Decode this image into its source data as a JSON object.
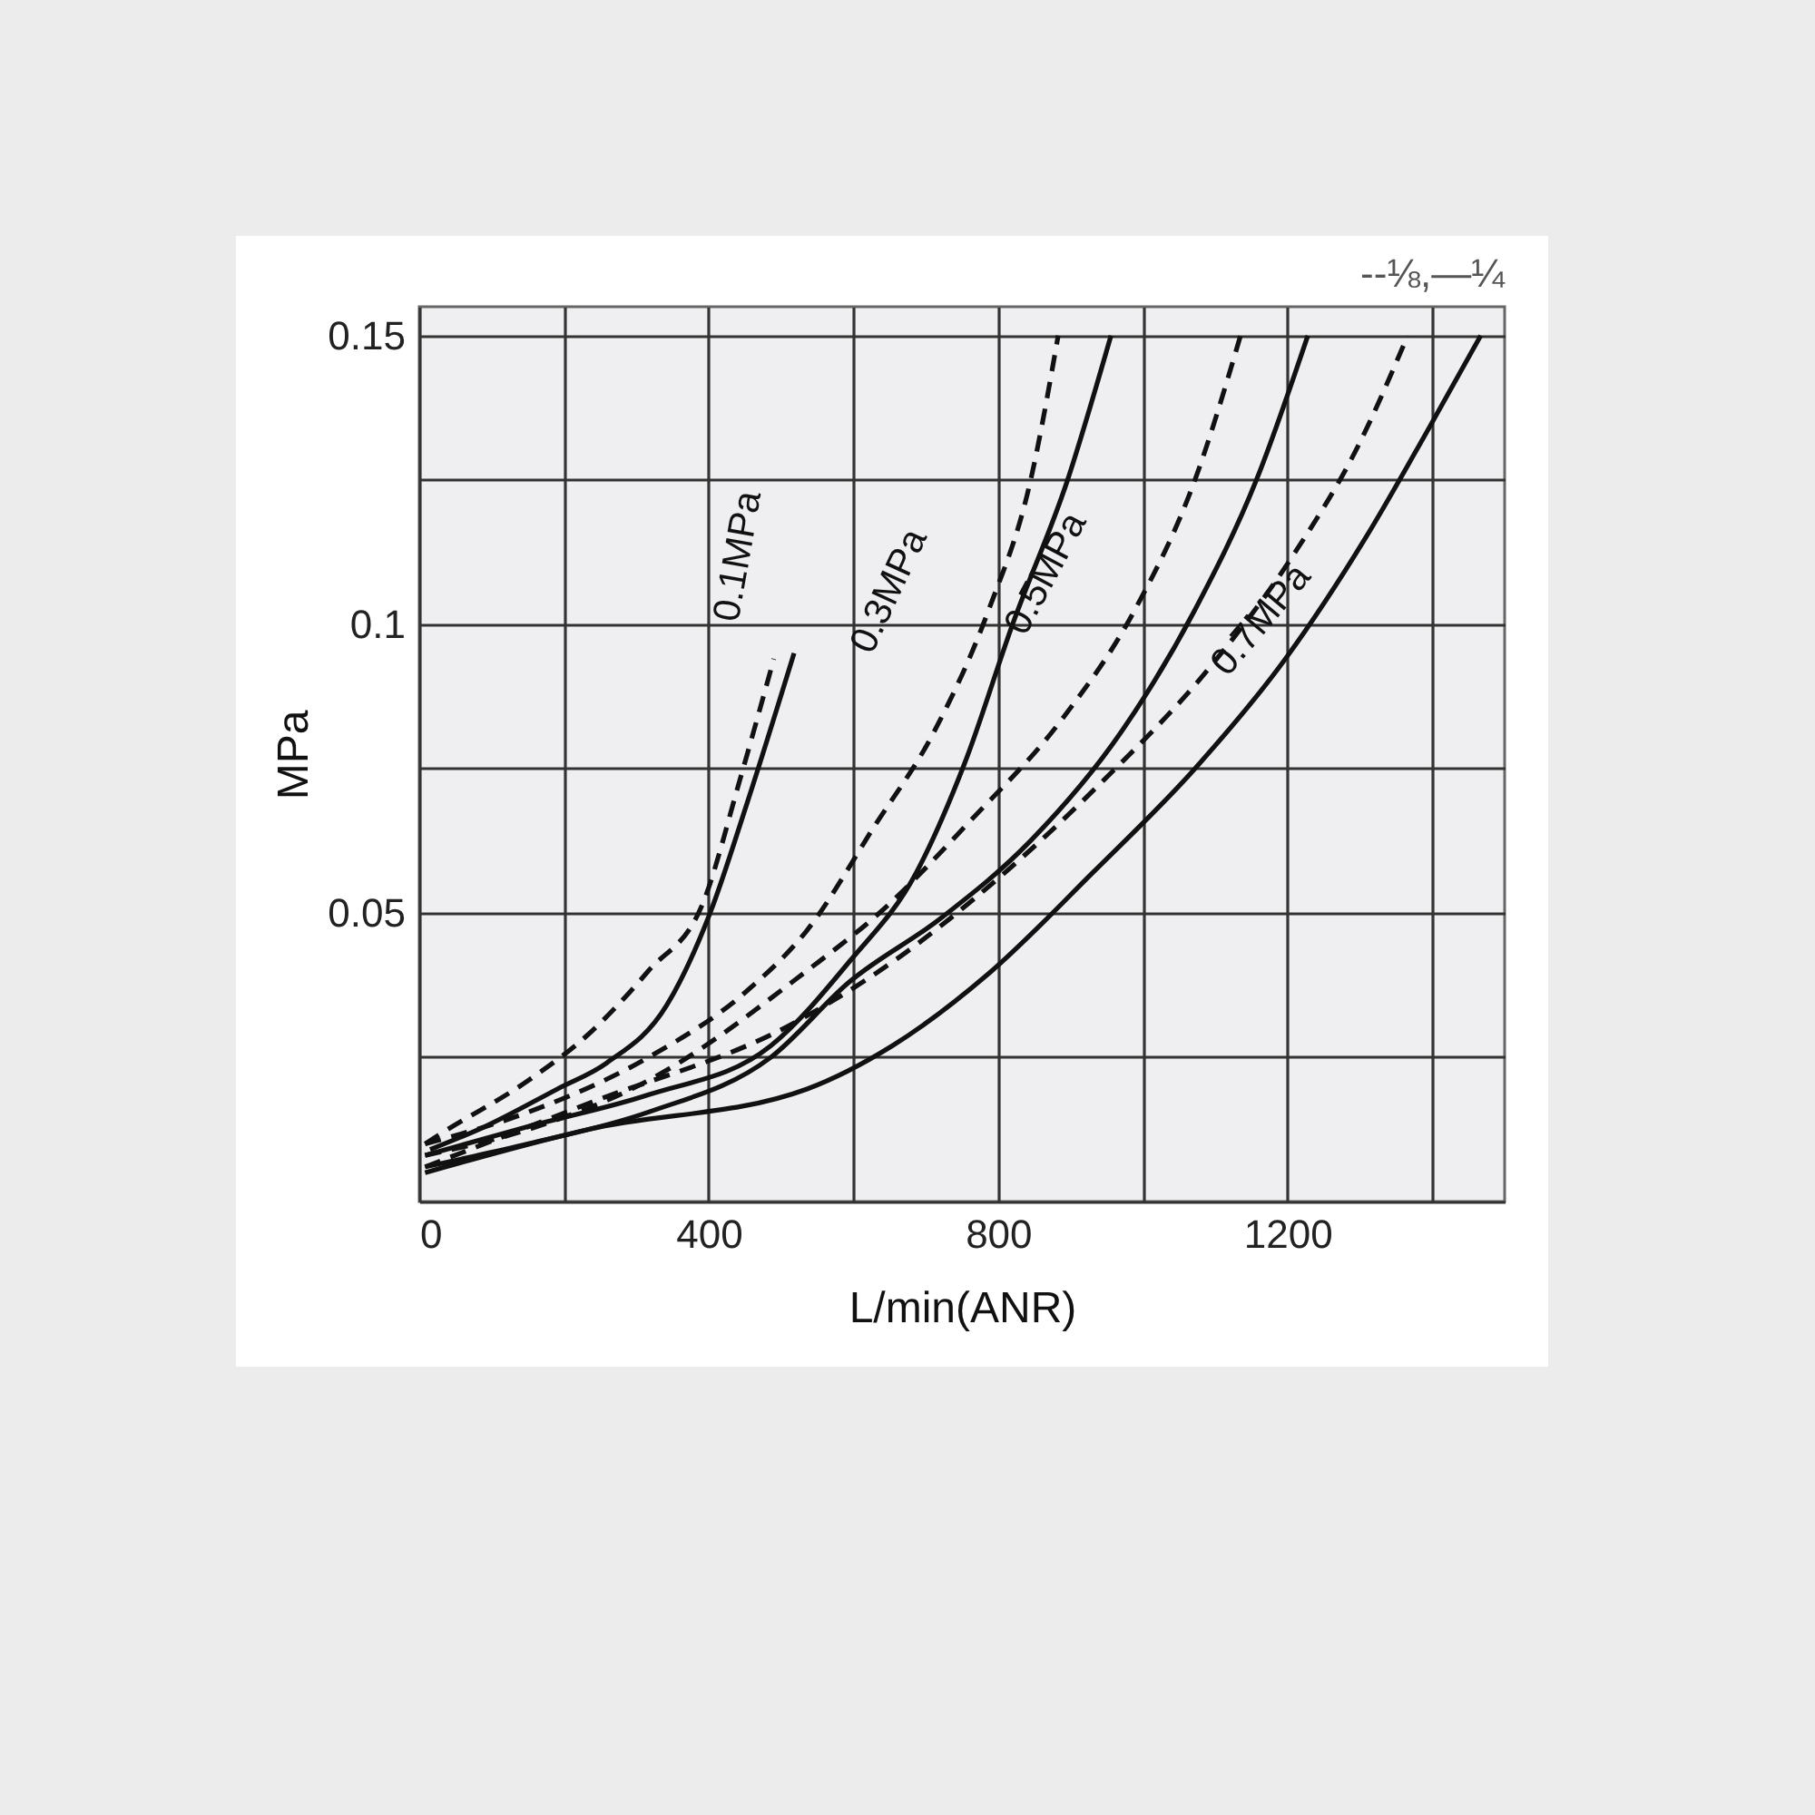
{
  "chart_data": {
    "type": "line",
    "xlabel": "L/min(ANR)",
    "ylabel": "MPa",
    "xlim": [
      0,
      1500
    ],
    "ylim": [
      0,
      0.155
    ],
    "xticks": [
      0,
      {
        "value": 200,
        "label": null
      },
      400,
      {
        "value": 600,
        "label": null
      },
      800,
      {
        "value": 1000,
        "label": null
      },
      1200,
      {
        "value": 1400,
        "label": null
      }
    ],
    "yticks": [
      {
        "value": 0,
        "label": null
      },
      {
        "value": 0.025,
        "label": null
      },
      0.05,
      {
        "value": 0.075,
        "label": null
      },
      0.1,
      {
        "value": 0.125,
        "label": null
      },
      0.15
    ],
    "grid": true,
    "annotations": [
      "--⅛,—¼",
      "0.1MPa",
      "0.3MPa",
      "0.5MPa",
      "0.7MPa"
    ],
    "series": [
      {
        "color": "#111111",
        "line_style": "dashed",
        "x": [
          8,
          33,
          151,
          234,
          317,
          393,
          443,
          490
        ],
        "values": [
          0.01,
          0.012,
          0.021,
          0.029,
          0.04,
          0.052,
          0.073,
          0.094
        ]
      },
      {
        "color": "#111111",
        "line_style": "solid",
        "x": [
          15,
          91,
          191,
          259,
          342,
          402,
          453,
          518
        ],
        "values": [
          0.009,
          0.013,
          0.0195,
          0.024,
          0.034,
          0.05,
          0.069,
          0.095
        ]
      },
      {
        "color": "#111111",
        "line_style": "dashed",
        "x": [
          8,
          151,
          317,
          453,
          536,
          629,
          712,
          787,
          845,
          883
        ],
        "values": [
          0.01,
          0.0155,
          0.025,
          0.0365,
          0.047,
          0.065,
          0.0815,
          0.1025,
          0.125,
          0.15
        ]
      },
      {
        "color": "#111111",
        "line_style": "solid",
        "x": [
          8,
          151,
          317,
          486,
          594,
          687,
          754,
          820,
          896,
          956
        ],
        "values": [
          0.008,
          0.013,
          0.0185,
          0.027,
          0.0415,
          0.057,
          0.076,
          0.1,
          0.125,
          0.15
        ]
      },
      {
        "color": "#111111",
        "line_style": "dashed",
        "x": [
          8,
          151,
          317,
          536,
          636,
          762,
          888,
          989,
          1072,
          1135
        ],
        "values": [
          0.008,
          0.0125,
          0.021,
          0.04,
          0.05,
          0.066,
          0.0835,
          0.1025,
          0.125,
          0.15
        ]
      },
      {
        "color": "#111111",
        "line_style": "solid",
        "x": [
          8,
          151,
          317,
          486,
          594,
          720,
          845,
          971,
          1072,
          1157,
          1228
        ],
        "values": [
          0.006,
          0.01,
          0.0155,
          0.025,
          0.038,
          0.049,
          0.0625,
          0.0815,
          0.1025,
          0.125,
          0.15
        ]
      },
      {
        "color": "#111111",
        "line_style": "dashed",
        "x": [
          8,
          234,
          519,
          654,
          805,
          946,
          1089,
          1208,
          1298,
          1366
        ],
        "values": [
          0.006,
          0.017,
          0.031,
          0.0415,
          0.0565,
          0.073,
          0.092,
          0.112,
          0.131,
          0.15
        ]
      },
      {
        "color": "#111111",
        "line_style": "solid",
        "x": [
          8,
          234,
          536,
          654,
          787,
          931,
          1072,
          1197,
          1308,
          1391,
          1467
        ],
        "values": [
          0.005,
          0.0125,
          0.0195,
          0.027,
          0.0395,
          0.057,
          0.075,
          0.094,
          0.115,
          0.133,
          0.15
        ]
      }
    ]
  }
}
